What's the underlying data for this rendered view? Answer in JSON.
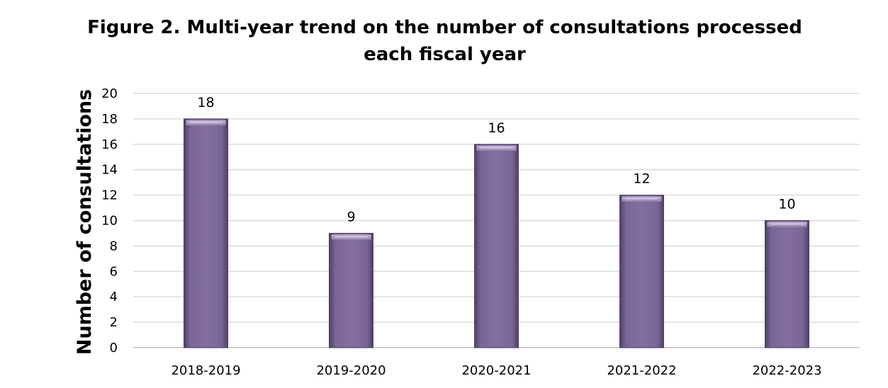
{
  "chart_data": {
    "type": "bar",
    "title": "Figure 2. Multi-year trend on the number of consultations processed each fiscal year",
    "xlabel": "",
    "ylabel": "Number of consultations",
    "categories": [
      "2018-2019",
      "2019-2020",
      "2020-2021",
      "2021-2022",
      "2022-2023"
    ],
    "values": [
      18,
      9,
      16,
      12,
      10
    ],
    "data_labels": [
      "18",
      "9",
      "16",
      "12",
      "10"
    ],
    "ylim": [
      0,
      20
    ],
    "yticks": [
      0,
      2,
      4,
      6,
      8,
      10,
      12,
      14,
      16,
      18,
      20
    ],
    "grid": true,
    "legend": "none",
    "colors": {
      "bar": "#7e6a98",
      "bar_dark": "#4f3f66",
      "bar_light": "#b7a8cc",
      "grid": "#d9d9d9",
      "axis": "#bfbfbf"
    }
  }
}
